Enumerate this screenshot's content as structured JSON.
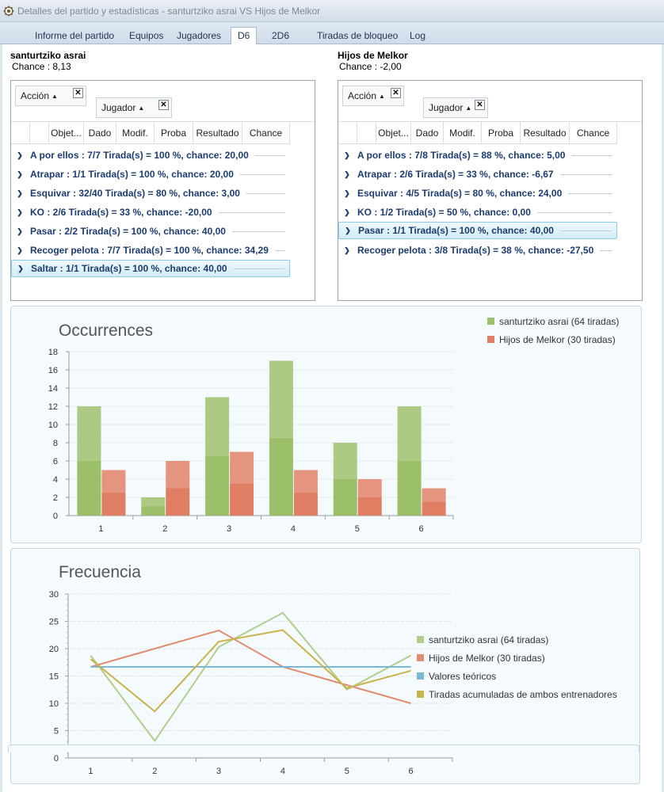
{
  "window": {
    "title": "Detalles del partido y estadísticas - santurtziko asrai VS Hijos de Melkor",
    "icon": "gear-icon"
  },
  "tabs": [
    {
      "label": "Informe del partido",
      "active": false
    },
    {
      "label": "Equipos",
      "active": false
    },
    {
      "label": "Jugadores",
      "active": false
    },
    {
      "label": "D6",
      "active": true
    },
    {
      "label": "2D6",
      "active": false
    },
    {
      "label": "Tiradas de bloqueo",
      "active": false
    },
    {
      "label": "Log",
      "active": false
    }
  ],
  "teams": [
    {
      "name": "santurtziko asrai",
      "chance": "Chance : 8,13",
      "group_chips": [
        "Acción",
        "Jugador"
      ],
      "columns": [
        "",
        "",
        "Objet...",
        "Dado",
        "Modif.",
        "Proba",
        "Resultado",
        "Chance"
      ],
      "rows": [
        {
          "label": "A por ellos :  7/7 Tirada(s) = 100 %, chance: 20,00",
          "selected": false
        },
        {
          "label": "Atrapar :  1/1 Tirada(s) = 100 %, chance: 20,00",
          "selected": false
        },
        {
          "label": "Esquivar :  32/40 Tirada(s) = 80 %, chance: 3,00",
          "selected": false
        },
        {
          "label": "KO :  2/6 Tirada(s) = 33 %, chance: -20,00",
          "selected": false
        },
        {
          "label": "Pasar :  2/2 Tirada(s) = 100 %, chance: 40,00",
          "selected": false
        },
        {
          "label": "Recoger pelota :  7/7 Tirada(s) = 100 %, chance: 34,29",
          "selected": false
        },
        {
          "label": "Saltar :  1/1 Tirada(s) = 100 %, chance: 40,00",
          "selected": true
        }
      ]
    },
    {
      "name": "Hijos de Melkor",
      "chance": "Chance : -2,00",
      "group_chips": [
        "Acción",
        "Jugador"
      ],
      "columns": [
        "",
        "",
        "Objet...",
        "Dado",
        "Modif.",
        "Proba",
        "Resultado",
        "Chance"
      ],
      "rows": [
        {
          "label": "A por ellos :  7/8 Tirada(s) = 88 %, chance: 5,00",
          "selected": false
        },
        {
          "label": "Atrapar :  2/6 Tirada(s) = 33 %, chance: -6,67",
          "selected": false
        },
        {
          "label": "Esquivar :  4/5 Tirada(s) = 80 %, chance: 24,00",
          "selected": false
        },
        {
          "label": "KO :  1/2 Tirada(s) = 50 %, chance: 0,00",
          "selected": false
        },
        {
          "label": "Pasar :  1/1 Tirada(s) = 100 %, chance: 40,00",
          "selected": true
        },
        {
          "label": "Recoger pelota :  3/8 Tirada(s) = 38 %, chance: -27,50",
          "selected": false
        }
      ]
    }
  ],
  "chart_data": [
    {
      "type": "bar",
      "title": "Occurrences",
      "categories": [
        "1",
        "2",
        "3",
        "4",
        "5",
        "6"
      ],
      "series": [
        {
          "name": "santurtziko asrai (64 tiradas)",
          "values": [
            12,
            2,
            13,
            17,
            8,
            12
          ],
          "color": "#9cbf6a"
        },
        {
          "name": "Hijos de Melkor (30 tiradas)",
          "values": [
            5,
            6,
            7,
            5,
            4,
            3
          ],
          "color": "#e07e63"
        }
      ],
      "yticks": [
        "0",
        "2",
        "4",
        "6",
        "8",
        "10",
        "12",
        "14",
        "16",
        "18"
      ],
      "ylim": [
        0,
        18
      ],
      "grid": true,
      "legend": "top-right"
    },
    {
      "type": "line",
      "title": "Frecuencia",
      "categories": [
        "1",
        "2",
        "3",
        "4",
        "5",
        "6"
      ],
      "series": [
        {
          "name": "santurtziko asrai (64 tiradas)",
          "values": [
            18.75,
            3.13,
            20.31,
            26.56,
            12.5,
            18.75
          ],
          "color": "#b4cc8c"
        },
        {
          "name": "Hijos de Melkor (30 tiradas)",
          "values": [
            16.67,
            20.0,
            23.33,
            16.67,
            13.33,
            10.0
          ],
          "color": "#e08c70"
        },
        {
          "name": "Valores teóricos",
          "values": [
            16.67,
            16.67,
            16.67,
            16.67,
            16.67,
            16.67
          ],
          "color": "#7ab8d8"
        },
        {
          "name": "Tiradas acumuladas de ambos entrenadores",
          "values": [
            18.09,
            8.51,
            21.28,
            23.4,
            12.77,
            15.96
          ],
          "color": "#c8b44c"
        }
      ],
      "yticks": [
        "0",
        "5",
        "10",
        "15",
        "20",
        "25",
        "30"
      ],
      "ylim": [
        0,
        30
      ],
      "grid": true,
      "legend": "right"
    }
  ]
}
